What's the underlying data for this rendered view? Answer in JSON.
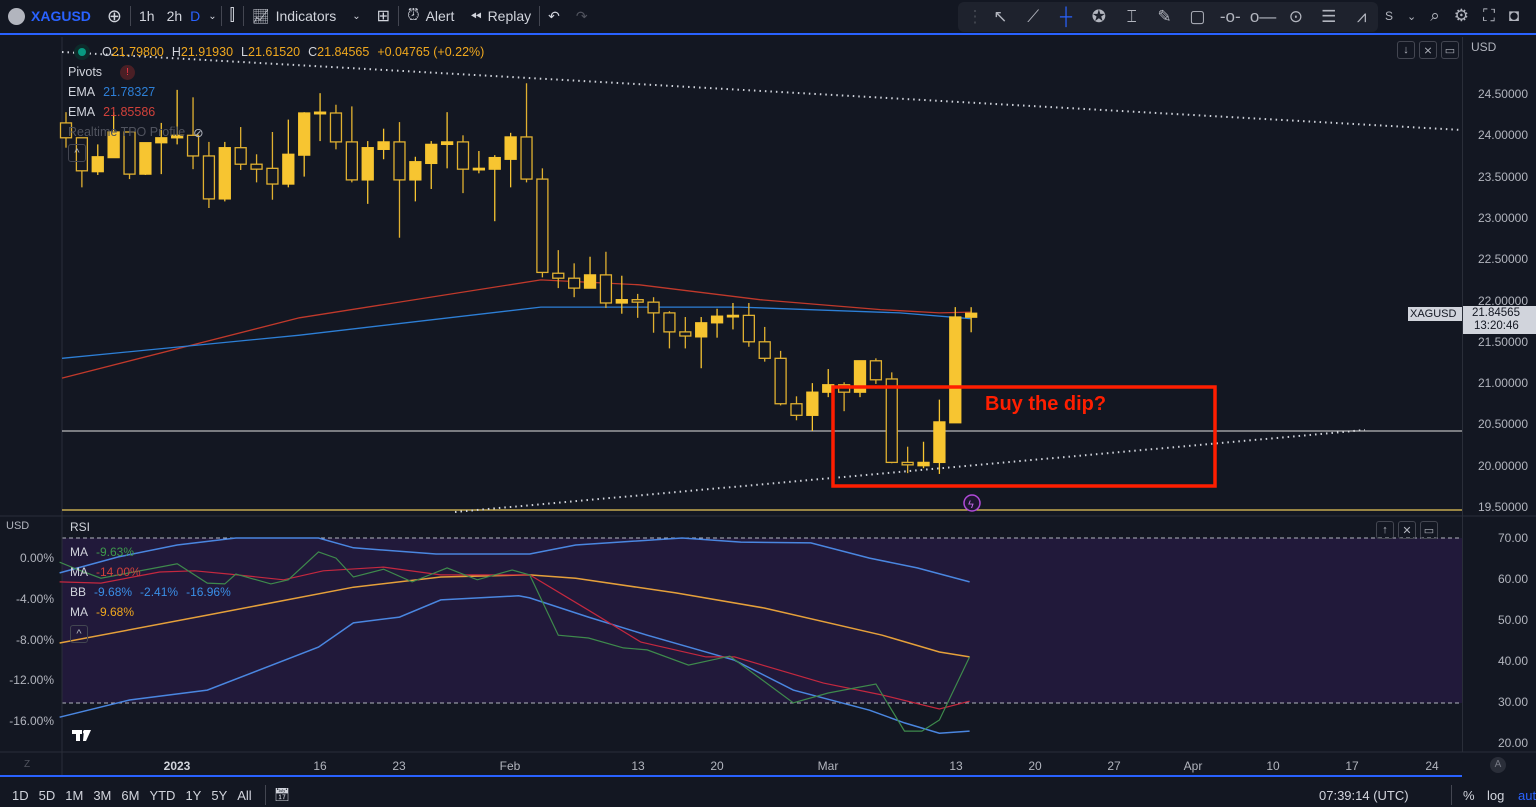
{
  "toolbar": {
    "symbol": "XAGUSD",
    "intervals": [
      "1h",
      "2h",
      "D"
    ],
    "active_interval": "D",
    "indicators": "Indicators",
    "alert": "Alert",
    "replay": "Replay",
    "partial_label": "S"
  },
  "colors": {
    "up": "#f7c531",
    "down": "#e0b030",
    "ema_blue": "#2d7fd6",
    "ema_red": "#c0392b",
    "accent": "#2962ff",
    "annotation": "#ff1e00"
  },
  "legend": {
    "o_label": "O",
    "o": "21.79800",
    "h_label": "H",
    "h": "21.91930",
    "l_label": "L",
    "l": "21.61520",
    "c_label": "C",
    "c": "21.84565",
    "change": "+0.04765 (+0.22%)",
    "pivots": "Pivots",
    "ema1_label": "EMA",
    "ema1": "21.78327",
    "ema2_label": "EMA",
    "ema2": "21.85586",
    "tpo": "Realtime TPO Profile"
  },
  "price_axis": {
    "currency": "USD",
    "ticks": [
      "24.50000",
      "24.00000",
      "23.50000",
      "23.00000",
      "22.50000",
      "22.00000",
      "21.50000",
      "21.00000",
      "20.50000",
      "20.00000",
      "19.50000"
    ],
    "symbol_tag": "XAGUSD",
    "last_price": "21.84565",
    "countdown": "13:20:46"
  },
  "annotation": {
    "text": "Buy the dip?"
  },
  "rsi": {
    "title": "RSI",
    "left_unit": "USD",
    "left_ticks": [
      "0.00%",
      "-4.00%",
      "-8.00%",
      "-12.00%",
      "-16.00%"
    ],
    "right_ticks": [
      "70.00",
      "60.00",
      "50.00",
      "40.00",
      "30.00",
      "20.00"
    ],
    "ma1_label": "MA",
    "ma1": "-9.63%",
    "ma2_label": "MA",
    "ma2": "-14.00%",
    "bb_label": "BB",
    "bb1": "-9.68%",
    "bb2": "-2.41%",
    "bb3": "-16.96%",
    "ma3_label": "MA",
    "ma3": "-9.68%"
  },
  "time_axis": {
    "ticks": [
      "2023",
      "16",
      "23",
      "Feb",
      "13",
      "20",
      "Mar",
      "13",
      "20",
      "27",
      "Apr",
      "10",
      "17",
      "24"
    ]
  },
  "bottom": {
    "ranges": [
      "1D",
      "5D",
      "1M",
      "3M",
      "6M",
      "YTD",
      "1Y",
      "5Y",
      "All"
    ],
    "clock": "07:39:14 (UTC)",
    "percent": "%",
    "log": "log",
    "auto": "auto"
  },
  "chart_data": {
    "type": "candlestick",
    "price_range": [
      19.5,
      24.5
    ],
    "ohlc": [
      [
        24.15,
        24.28,
        23.85,
        23.97
      ],
      [
        23.97,
        23.97,
        23.37,
        23.57
      ],
      [
        23.56,
        23.89,
        23.52,
        23.74
      ],
      [
        23.73,
        24.28,
        23.73,
        24.04
      ],
      [
        24.04,
        24.04,
        23.47,
        23.53
      ],
      [
        23.53,
        23.91,
        23.52,
        23.91
      ],
      [
        23.91,
        24.15,
        23.53,
        23.97
      ],
      [
        23.97,
        24.55,
        23.89,
        24.0
      ],
      [
        24.0,
        24.46,
        23.59,
        23.75
      ],
      [
        23.75,
        23.92,
        23.12,
        23.23
      ],
      [
        23.23,
        23.92,
        23.2,
        23.85
      ],
      [
        23.85,
        24.1,
        23.58,
        23.65
      ],
      [
        23.65,
        23.77,
        23.43,
        23.59
      ],
      [
        23.6,
        24.04,
        23.22,
        23.41
      ],
      [
        23.41,
        24.19,
        23.37,
        23.77
      ],
      [
        23.76,
        24.28,
        23.5,
        24.27
      ],
      [
        24.26,
        24.51,
        23.93,
        24.28
      ],
      [
        24.27,
        24.37,
        23.83,
        23.92
      ],
      [
        23.92,
        24.35,
        23.43,
        23.46
      ],
      [
        23.46,
        23.93,
        23.17,
        23.85
      ],
      [
        23.83,
        24.08,
        23.71,
        23.92
      ],
      [
        23.92,
        24.16,
        22.76,
        23.46
      ],
      [
        23.46,
        23.74,
        23.2,
        23.68
      ],
      [
        23.66,
        23.93,
        23.35,
        23.89
      ],
      [
        23.89,
        24.28,
        23.6,
        23.92
      ],
      [
        23.92,
        24.0,
        23.3,
        23.59
      ],
      [
        23.59,
        23.81,
        23.54,
        23.6
      ],
      [
        23.59,
        23.76,
        22.96,
        23.73
      ],
      [
        23.71,
        24.03,
        23.37,
        23.98
      ],
      [
        23.98,
        24.63,
        23.43,
        23.47
      ],
      [
        23.47,
        23.6,
        22.28,
        22.34
      ],
      [
        22.33,
        22.61,
        22.15,
        22.27
      ],
      [
        22.27,
        22.45,
        22.04,
        22.15
      ],
      [
        22.15,
        22.53,
        22.15,
        22.31
      ],
      [
        22.31,
        22.59,
        21.91,
        21.97
      ],
      [
        21.97,
        22.3,
        21.84,
        22.01
      ],
      [
        22.01,
        22.08,
        21.79,
        21.98
      ],
      [
        21.98,
        22.04,
        21.61,
        21.85
      ],
      [
        21.85,
        21.87,
        21.42,
        21.62
      ],
      [
        21.62,
        21.8,
        21.42,
        21.57
      ],
      [
        21.56,
        21.8,
        21.18,
        21.73
      ],
      [
        21.73,
        21.9,
        21.55,
        21.81
      ],
      [
        21.81,
        21.97,
        21.65,
        21.82
      ],
      [
        21.82,
        21.97,
        21.44,
        21.5
      ],
      [
        21.5,
        21.68,
        21.26,
        21.3
      ],
      [
        21.3,
        21.39,
        20.73,
        20.75
      ],
      [
        20.75,
        20.84,
        20.55,
        20.61
      ],
      [
        20.61,
        21.0,
        20.42,
        20.89
      ],
      [
        20.89,
        21.17,
        20.83,
        20.98
      ],
      [
        20.98,
        21.01,
        20.66,
        20.89
      ],
      [
        20.89,
        21.27,
        20.83,
        21.27
      ],
      [
        21.27,
        21.3,
        20.99,
        21.04
      ],
      [
        21.05,
        21.13,
        20.03,
        20.04
      ],
      [
        20.04,
        20.23,
        19.91,
        20.01
      ],
      [
        20.0,
        20.29,
        19.97,
        20.04
      ],
      [
        20.04,
        20.8,
        19.9,
        20.53
      ],
      [
        20.52,
        21.92,
        20.52,
        21.8
      ],
      [
        21.798,
        21.9193,
        21.6152,
        21.84565
      ]
    ],
    "ema_blue": [
      [
        0.75,
        21.3
      ],
      [
        15.7,
        21.58
      ],
      [
        30.9,
        21.92
      ],
      [
        43.4,
        21.92
      ],
      [
        53.5,
        21.85
      ],
      [
        57.3,
        21.79
      ],
      [
        58,
        21.78
      ]
    ],
    "ema_red": [
      [
        0.75,
        21.06
      ],
      [
        15.7,
        21.79
      ],
      [
        30.9,
        22.25
      ],
      [
        37.1,
        22.19
      ],
      [
        44.7,
        22.01
      ],
      [
        52.3,
        21.89
      ],
      [
        56,
        21.85
      ],
      [
        58,
        21.86
      ]
    ],
    "horizontal_level": 20.42,
    "rsi_range": [
      20,
      70
    ],
    "bb_upper": [
      [
        0.6,
        61.5
      ],
      [
        4.3,
        65.4
      ],
      [
        8.0,
        68.3
      ],
      [
        11.7,
        70
      ],
      [
        16.9,
        70
      ],
      [
        19.1,
        67.6
      ],
      [
        24.3,
        66.1
      ],
      [
        30.2,
        66.1
      ],
      [
        33.1,
        68.3
      ],
      [
        39.8,
        70
      ],
      [
        43.5,
        69.0
      ],
      [
        47.9,
        68.8
      ],
      [
        51.6,
        65.1
      ],
      [
        54.6,
        62.7
      ],
      [
        57.9,
        59.3
      ]
    ],
    "bb_lower": [
      [
        0.6,
        26.3
      ],
      [
        5.0,
        30.5
      ],
      [
        9.9,
        32.9
      ],
      [
        16.9,
        43.4
      ],
      [
        19.1,
        49.3
      ],
      [
        22.0,
        50.7
      ],
      [
        24.6,
        54.9
      ],
      [
        29.5,
        55.9
      ],
      [
        30.2,
        55.4
      ],
      [
        33.9,
        50.7
      ],
      [
        37.6,
        46.3
      ],
      [
        43.1,
        40.2
      ],
      [
        46.8,
        32.9
      ],
      [
        51.6,
        28.0
      ],
      [
        53.8,
        24.9
      ],
      [
        56.0,
        22.4
      ],
      [
        57.9,
        22.9
      ]
    ],
    "rsi_ma_orange": [
      [
        0.6,
        44.4
      ],
      [
        9.9,
        51.2
      ],
      [
        19.1,
        58.0
      ],
      [
        24.6,
        60.5
      ],
      [
        30.2,
        61.0
      ],
      [
        33.1,
        60.2
      ],
      [
        39.4,
        56.6
      ],
      [
        45.0,
        52.9
      ],
      [
        52.4,
        46.3
      ],
      [
        56.0,
        42.2
      ],
      [
        57.9,
        41.0
      ]
    ],
    "rsi_ma_red": [
      [
        0.6,
        59.3
      ],
      [
        3.2,
        59.0
      ],
      [
        6.9,
        61.7
      ],
      [
        9.1,
        62.0
      ],
      [
        11.3,
        61.2
      ],
      [
        14.7,
        59.8
      ],
      [
        17.2,
        62.0
      ],
      [
        21.0,
        62.9
      ],
      [
        24.6,
        61.0
      ],
      [
        30.2,
        61.0
      ],
      [
        33.9,
        52.4
      ],
      [
        37.2,
        44.6
      ],
      [
        41.3,
        41.0
      ],
      [
        43.1,
        41.0
      ],
      [
        48.7,
        34.6
      ],
      [
        52.4,
        31.7
      ],
      [
        56.0,
        28.3
      ],
      [
        57.9,
        30.2
      ]
    ],
    "rsi": [
      [
        0.6,
        64.1
      ],
      [
        1.8,
        62.2
      ],
      [
        3.2,
        60.2
      ],
      [
        6.9,
        62.9
      ],
      [
        8.0,
        63.7
      ],
      [
        9.9,
        59.0
      ],
      [
        11.0,
        58.8
      ],
      [
        11.7,
        61.2
      ],
      [
        13.9,
        58.8
      ],
      [
        15.0,
        59.8
      ],
      [
        16.9,
        66.6
      ],
      [
        18.0,
        65.1
      ],
      [
        19.1,
        60.5
      ],
      [
        21.0,
        62.4
      ],
      [
        22.8,
        59.3
      ],
      [
        25.0,
        62.7
      ],
      [
        26.9,
        59.8
      ],
      [
        29.1,
        62.2
      ],
      [
        30.2,
        61.0
      ],
      [
        32.0,
        46.3
      ],
      [
        33.9,
        45.6
      ],
      [
        36.1,
        43.2
      ],
      [
        37.6,
        42.7
      ],
      [
        40.2,
        39.0
      ],
      [
        42.8,
        41.2
      ],
      [
        46.8,
        29.8
      ],
      [
        49.0,
        32.2
      ],
      [
        52.0,
        34.4
      ],
      [
        53.8,
        22.9
      ],
      [
        54.9,
        22.9
      ],
      [
        56.0,
        25.6
      ],
      [
        57.9,
        41.0
      ]
    ]
  }
}
